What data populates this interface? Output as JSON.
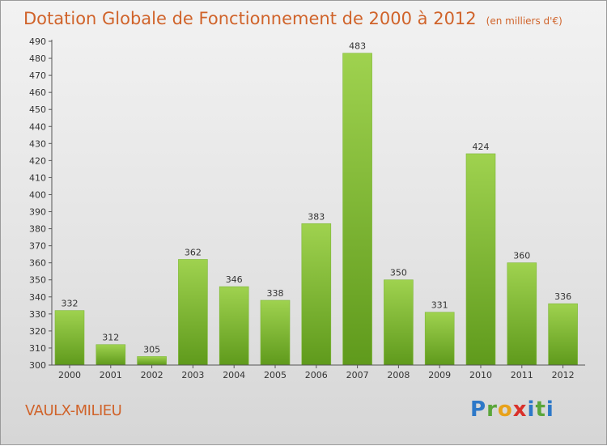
{
  "chart_data": {
    "type": "bar",
    "title": "Dotation Globale de Fonctionnement de 2000 à 2012",
    "unit_note": "(en milliers d'€)",
    "categories": [
      "2000",
      "2001",
      "2002",
      "2003",
      "2004",
      "2005",
      "2006",
      "2007",
      "2008",
      "2009",
      "2010",
      "2011",
      "2012"
    ],
    "values": [
      332,
      312,
      305,
      362,
      346,
      338,
      383,
      483,
      350,
      331,
      424,
      360,
      336
    ],
    "ylim": [
      300,
      490
    ],
    "ytick_step": 10,
    "xlabel": "",
    "ylabel": "",
    "grid": false,
    "bar_color_top": "#9fd24f",
    "bar_color_bottom": "#5f9a1c"
  },
  "footer": {
    "town": "VAULX-MILIEU",
    "logo": {
      "p": "P",
      "r": "r",
      "o": "o",
      "x": "x",
      "i": "i",
      "t": "t",
      "i2": "i"
    }
  }
}
